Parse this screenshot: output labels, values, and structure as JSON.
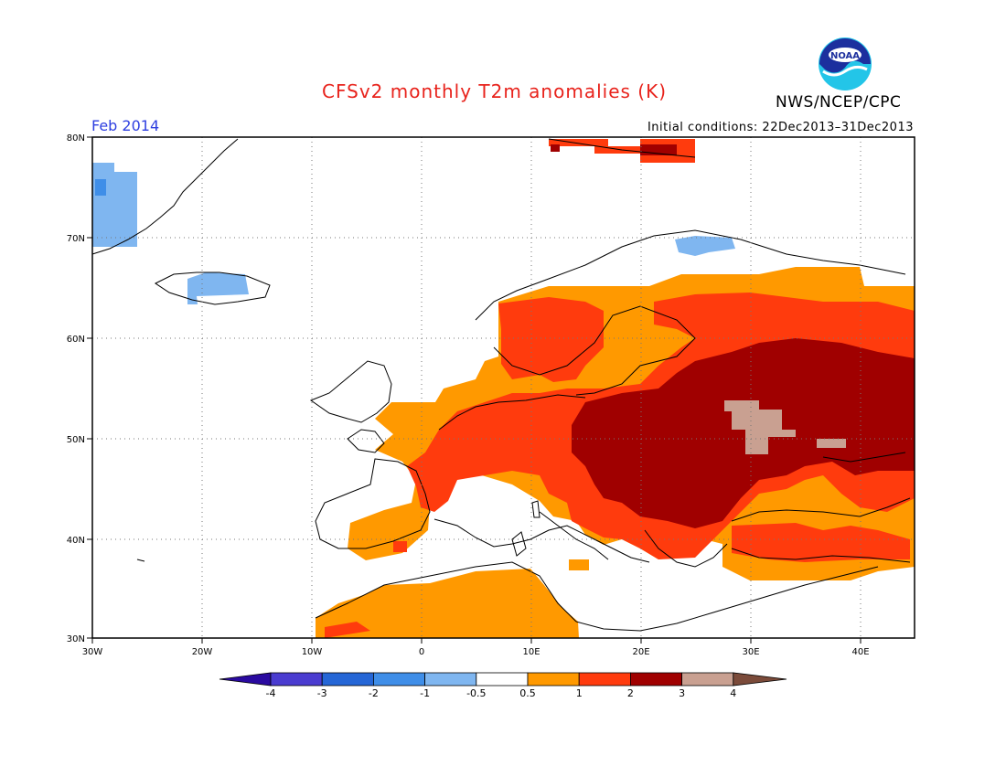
{
  "header": {
    "title": "CFSv2 monthly T2m anomalies (K)",
    "agency": "NWS/NCEP/CPC",
    "period": "Feb 2014",
    "initial_conditions": "Initial conditions: 22Dec2013–31Dec2013",
    "logo_text": "NOAA"
  },
  "axes": {
    "lat_ticks": [
      "80N",
      "70N",
      "60N",
      "50N",
      "40N",
      "30N"
    ],
    "lon_ticks": [
      "30W",
      "20W",
      "10W",
      "0",
      "10E",
      "20E",
      "30E",
      "40E"
    ]
  },
  "legend": {
    "labels": [
      "-4",
      "-3",
      "-2",
      "-1",
      "-0.5",
      "0.5",
      "1",
      "2",
      "3",
      "4"
    ],
    "colors": [
      "#2a0aa0",
      "#4a3cd0",
      "#2566d6",
      "#3f8ee8",
      "#7fb6f0",
      "#ffffff",
      "#ff9900",
      "#ff3b0d",
      "#a00000",
      "#c9a091",
      "#7b4b3a"
    ]
  }
}
